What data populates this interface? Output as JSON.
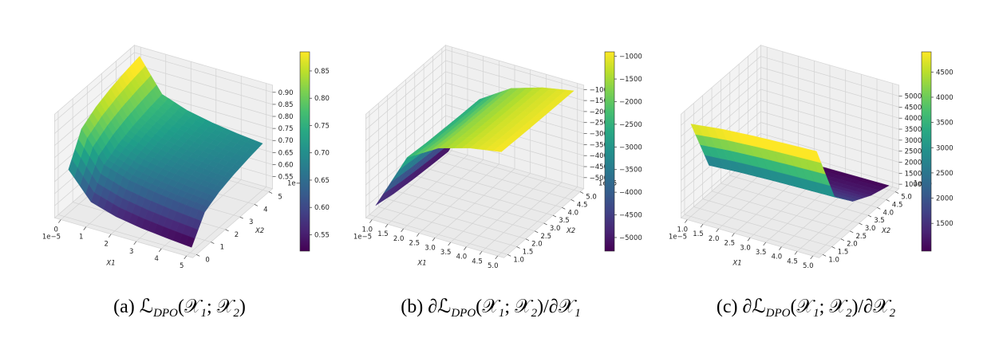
{
  "chart_data": [
    {
      "type": "surface",
      "caption_parts": [
        "(a) ℒ",
        "DPO",
        "(𝒳",
        "1",
        "; 𝒳",
        "2",
        ")"
      ],
      "x_label": "X1",
      "y_label": "X2",
      "x_offset_label": "1e−5",
      "y_offset_label": "1e−5",
      "colormap": "viridis",
      "x": [
        0.1,
        1,
        2,
        3,
        4,
        5
      ],
      "y": [
        0.1,
        1,
        2,
        3,
        4,
        5
      ],
      "z": [
        [
          0.693,
          0.585,
          0.554,
          0.537,
          0.526,
          0.517
        ],
        [
          0.815,
          0.693,
          0.659,
          0.64,
          0.626,
          0.616
        ],
        [
          0.854,
          0.728,
          0.693,
          0.673,
          0.659,
          0.648
        ],
        [
          0.878,
          0.75,
          0.714,
          0.693,
          0.679,
          0.668
        ],
        [
          0.895,
          0.765,
          0.728,
          0.707,
          0.693,
          0.682
        ],
        [
          0.908,
          0.777,
          0.74,
          0.719,
          0.704,
          0.693
        ]
      ],
      "xlim": [
        -0.25,
        5.25
      ],
      "ylim": [
        -0.25,
        5.25
      ],
      "zlim": [
        0.5,
        0.93
      ],
      "xticks": [
        0,
        1,
        2,
        3,
        4,
        5
      ],
      "yticks": [
        0,
        1,
        2,
        3,
        4,
        5
      ],
      "zticks": [
        0.55,
        {
          "value": 0.6,
          "label": "0.60"
        },
        0.65,
        {
          "value": 0.7,
          "label": "0.70"
        },
        0.75,
        {
          "value": 0.8,
          "label": "0.80"
        },
        0.85,
        {
          "value": 0.9,
          "label": "0.90"
        }
      ],
      "clim": [
        0.52,
        0.885
      ],
      "cticks": [
        0.55,
        {
          "value": 0.6,
          "label": "0.60"
        },
        0.65,
        {
          "value": 0.7,
          "label": "0.70"
        },
        0.75,
        {
          "value": 0.8,
          "label": "0.80"
        },
        0.85
      ]
    },
    {
      "type": "surface",
      "caption_parts": [
        "(b) ∂ℒ",
        "DPO",
        "(𝒳",
        "1",
        "; 𝒳",
        "2",
        ")/∂𝒳",
        "1"
      ],
      "x_label": "X1",
      "y_label": "X2",
      "x_offset_label": "1e−5",
      "y_offset_label": "1e−5",
      "colormap": "viridis",
      "x": [
        1,
        2,
        3,
        4,
        5
      ],
      "y": [
        1,
        2,
        3,
        4,
        5
      ],
      "z": [
        [
          -5000,
          -2413,
          -1575,
          -1163,
          -920
        ],
        [
          -5173,
          -2500,
          -1633,
          -1207,
          -954
        ],
        [
          -5275,
          -2551,
          -1667,
          -1232,
          -975
        ],
        [
          -5347,
          -2587,
          -1691,
          -1250,
          -989
        ],
        [
          -5402,
          -2615,
          -1709,
          -1264,
          -1000
        ]
      ],
      "xlim": [
        0.8,
        5.2
      ],
      "ylim": [
        0.8,
        5.2
      ],
      "zlim": [
        -5500,
        -800
      ],
      "xticks": [
        {
          "value": 1,
          "label": "1.0"
        },
        1.5,
        {
          "value": 2,
          "label": "2.0"
        },
        2.5,
        {
          "value": 3,
          "label": "3.0"
        },
        3.5,
        {
          "value": 4,
          "label": "4.0"
        },
        4.5,
        {
          "value": 5,
          "label": "5.0"
        }
      ],
      "yticks": [
        {
          "value": 1,
          "label": "1.0"
        },
        1.5,
        {
          "value": 2,
          "label": "2.0"
        },
        2.5,
        {
          "value": 3,
          "label": "3.0"
        },
        3.5,
        {
          "value": 4,
          "label": "4.0"
        },
        4.5,
        {
          "value": 5,
          "label": "5.0"
        }
      ],
      "zticks": [
        {
          "value": -5000,
          "label": "−5000"
        },
        {
          "value": -4500,
          "label": "−4500"
        },
        {
          "value": -4000,
          "label": "−4000"
        },
        {
          "value": -3500,
          "label": "−3500"
        },
        {
          "value": -3000,
          "label": "−3000"
        },
        {
          "value": -2500,
          "label": "−2500"
        },
        {
          "value": -2000,
          "label": "−2000"
        },
        {
          "value": -1500,
          "label": "−1500"
        },
        {
          "value": -1000,
          "label": "−1000"
        }
      ],
      "clim": [
        -5300,
        -900
      ],
      "cticks": [
        {
          "value": -5000,
          "label": "−5000"
        },
        {
          "value": -4500,
          "label": "−4500"
        },
        {
          "value": -4000,
          "label": "−4000"
        },
        {
          "value": -3500,
          "label": "−3500"
        },
        {
          "value": -3000,
          "label": "−3000"
        },
        {
          "value": -2500,
          "label": "−2500"
        },
        {
          "value": -2000,
          "label": "−2000"
        },
        {
          "value": -1500,
          "label": "−1500"
        },
        {
          "value": -1000,
          "label": "−1000"
        }
      ]
    },
    {
      "type": "surface",
      "caption_parts": [
        "(c) ∂ℒ",
        "DPO",
        "(𝒳",
        "1",
        "; 𝒳",
        "2",
        ")/∂𝒳",
        "2"
      ],
      "x_label": "X1",
      "y_label": "X2",
      "x_offset_label": "1e−5",
      "y_offset_label": "1e−5",
      "colormap": "viridis",
      "x": [
        1,
        2,
        3,
        4,
        5
      ],
      "y": [
        1,
        2,
        3,
        4,
        5
      ],
      "z": [
        [
          5000,
          5173,
          5275,
          5347,
          5402
        ],
        [
          2413,
          2500,
          2551,
          2587,
          2615
        ],
        [
          1575,
          1633,
          1667,
          1691,
          1709
        ],
        [
          1163,
          1207,
          1232,
          1250,
          1264
        ],
        [
          920,
          954,
          975,
          989,
          1000
        ]
      ],
      "xlim": [
        0.8,
        5.2
      ],
      "ylim": [
        0.8,
        5.2
      ],
      "zlim": [
        800,
        5500
      ],
      "xticks": [
        {
          "value": 1,
          "label": "1.0"
        },
        1.5,
        {
          "value": 2,
          "label": "2.0"
        },
        2.5,
        {
          "value": 3,
          "label": "3.0"
        },
        3.5,
        {
          "value": 4,
          "label": "4.0"
        },
        4.5,
        {
          "value": 5,
          "label": "5.0"
        }
      ],
      "yticks": [
        {
          "value": 1,
          "label": "1.0"
        },
        1.5,
        {
          "value": 2,
          "label": "2.0"
        },
        2.5,
        {
          "value": 3,
          "label": "3.0"
        },
        3.5,
        {
          "value": 4,
          "label": "4.0"
        },
        4.5,
        {
          "value": 5,
          "label": "5.0"
        }
      ],
      "zticks": [
        1000,
        1500,
        2000,
        2500,
        3000,
        3500,
        4000,
        4500,
        5000
      ],
      "clim": [
        950,
        4900
      ],
      "cticks": [
        1500,
        2000,
        2500,
        3000,
        3500,
        4000,
        4500
      ]
    }
  ]
}
